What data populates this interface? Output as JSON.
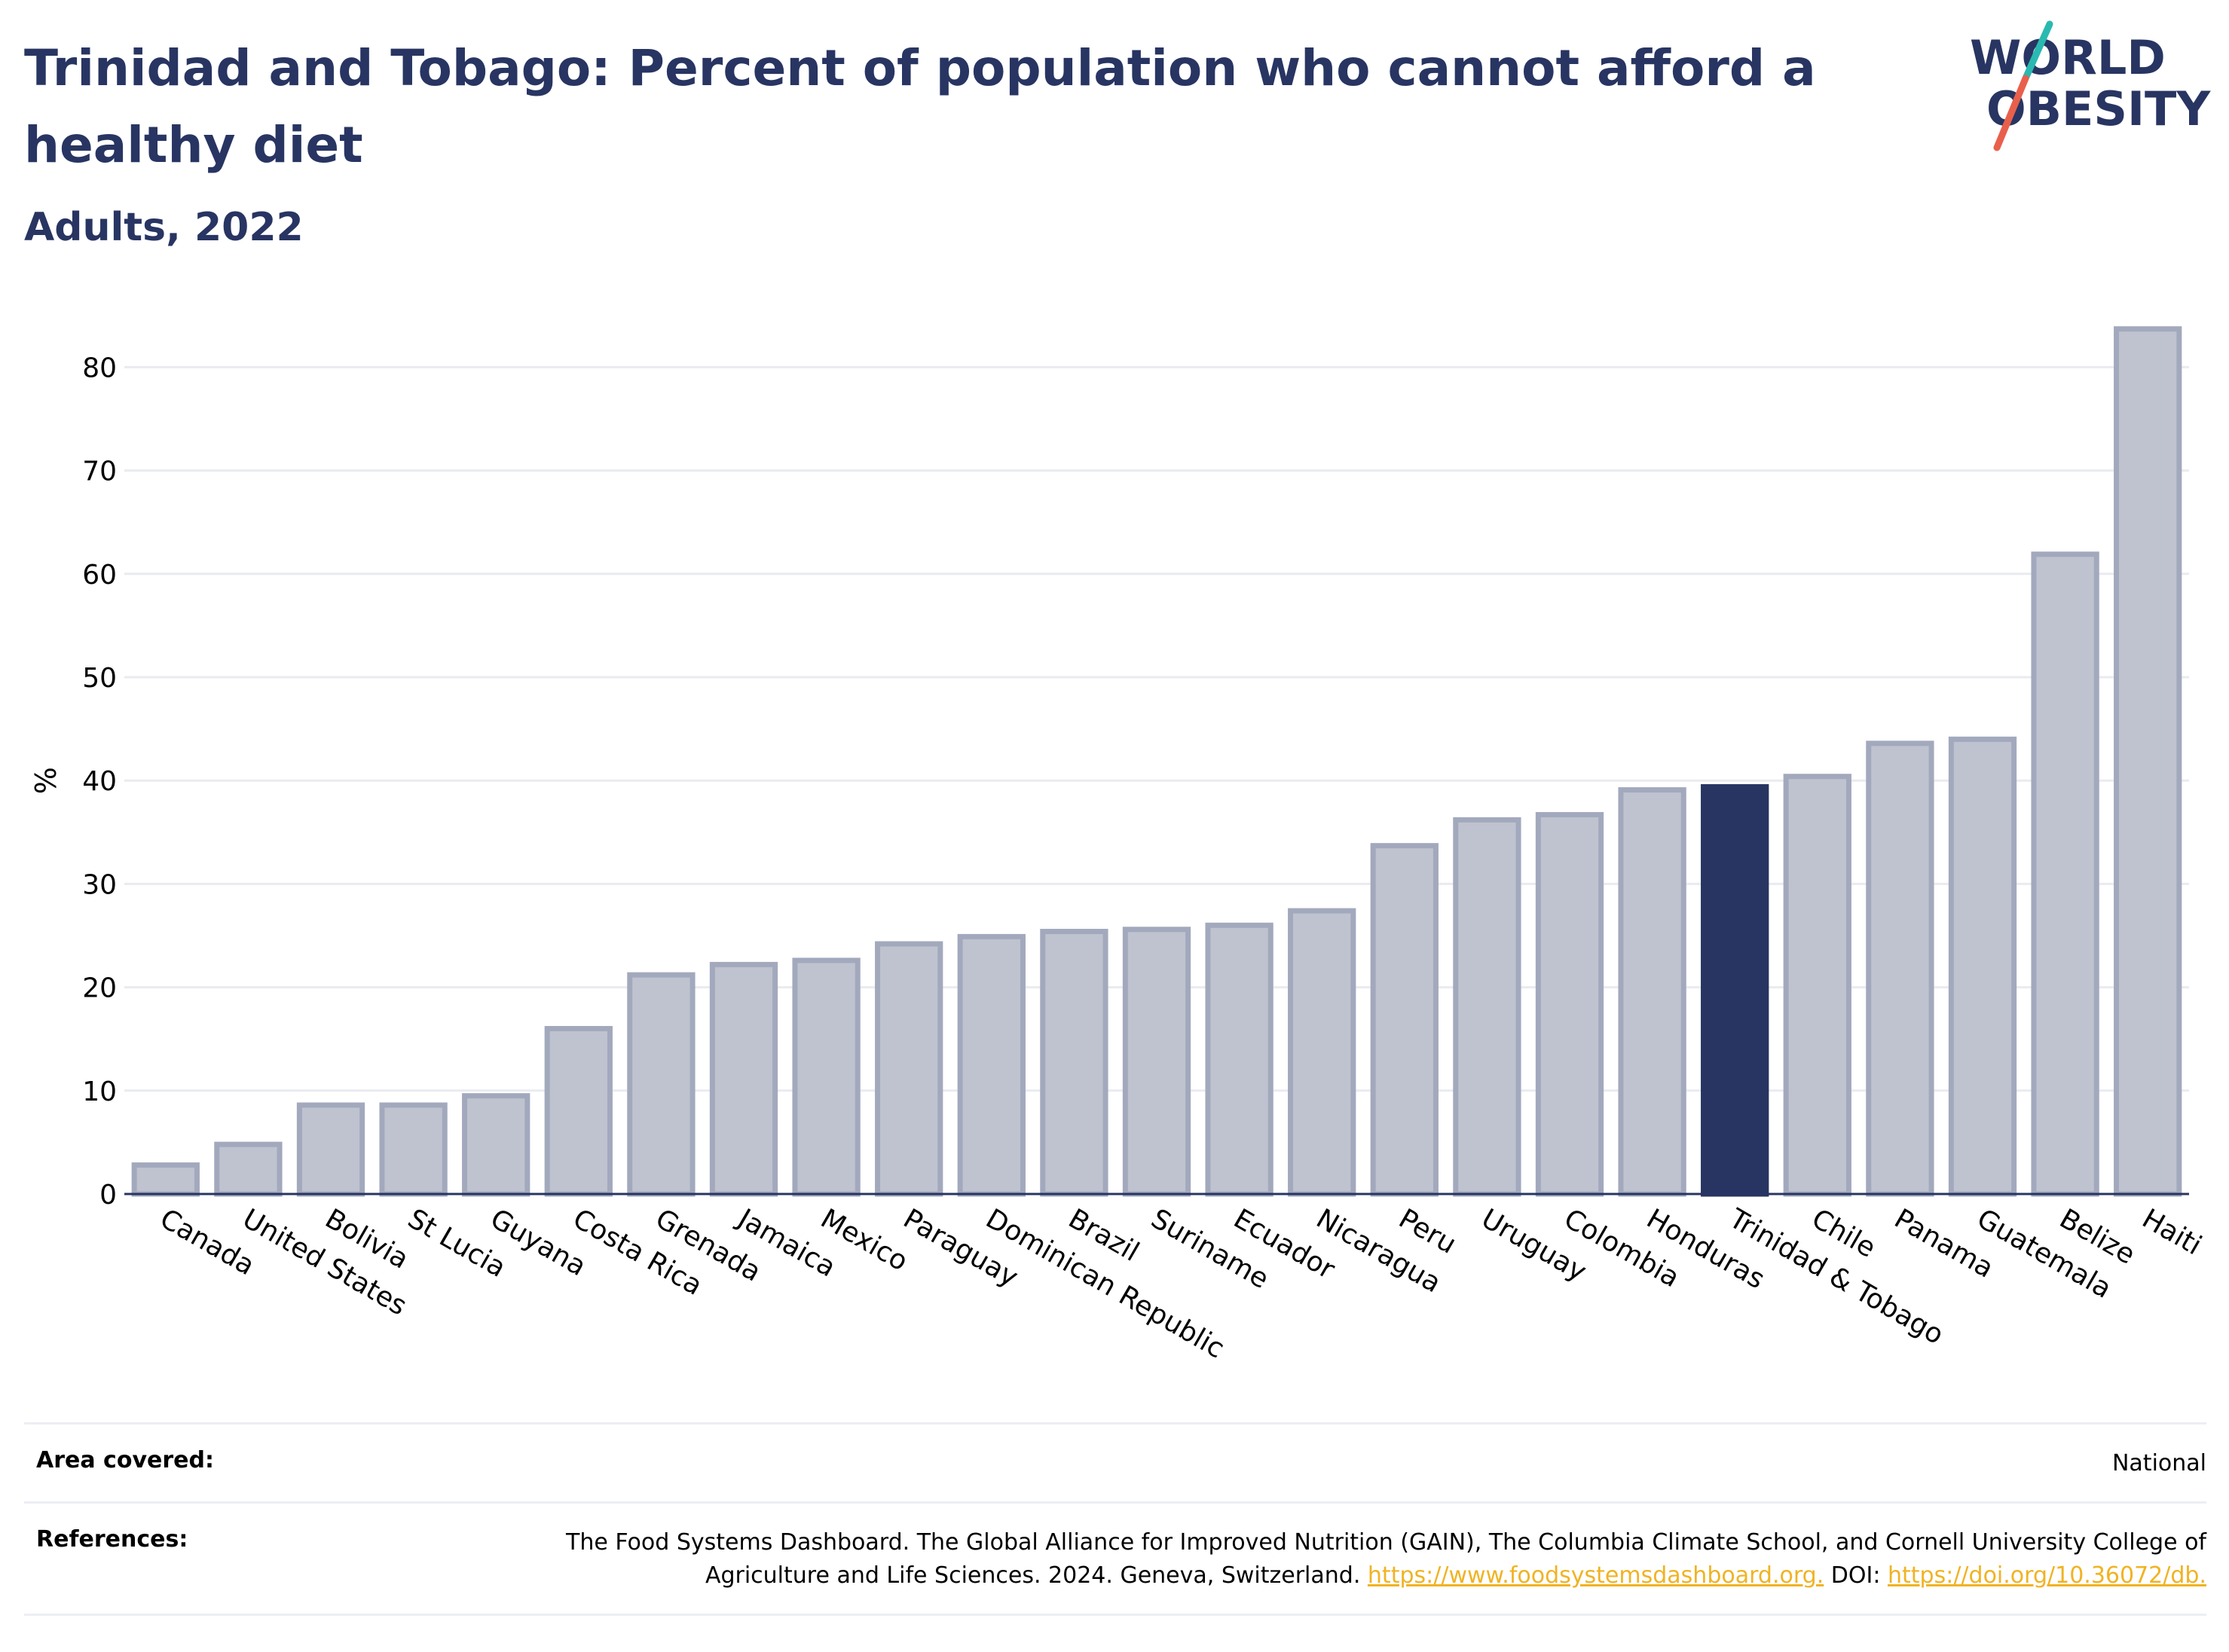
{
  "header": {
    "title": "Trinidad and Tobago: Percent of population who cannot afford a healthy diet",
    "subtitle": "Adults, 2022"
  },
  "logo": {
    "line1": "WORLD",
    "line2": "OBESITY",
    "colors": {
      "text": "#283562",
      "slash_top": "#2ab9b0",
      "slash_bottom": "#e8604c"
    }
  },
  "chart_data": {
    "type": "bar",
    "ylabel": "%",
    "xlabel": "",
    "ylim": [
      0,
      87
    ],
    "yticks": [
      0,
      10,
      20,
      30,
      40,
      50,
      60,
      70,
      80
    ],
    "grid": true,
    "categories": [
      "Canada",
      "United States",
      "Bolivia",
      "St Lucia",
      "Guyana",
      "Costa Rica",
      "Grenada",
      "Jamaica",
      "Mexico",
      "Paraguay",
      "Dominican Republic",
      "Brazil",
      "Suriname",
      "Ecuador",
      "Nicaragua",
      "Peru",
      "Uruguay",
      "Colombia",
      "Honduras",
      "Trinidad & Tobago",
      "Chile",
      "Panama",
      "Guatemala",
      "Belize",
      "Haiti"
    ],
    "values": [
      2.8,
      4.8,
      8.6,
      8.6,
      9.5,
      16.0,
      21.2,
      22.2,
      22.6,
      24.2,
      24.9,
      25.4,
      25.6,
      26.0,
      27.4,
      33.7,
      36.2,
      36.7,
      39.1,
      39.4,
      40.4,
      43.6,
      44.0,
      61.9,
      83.7
    ],
    "highlight": "Trinidad & Tobago",
    "colors": {
      "highlight": "#283562",
      "default_fill": "#bfc3cf",
      "default_stroke": "#a3a9bd",
      "axis": "#283562",
      "grid": "#e9ebf0"
    }
  },
  "meta": {
    "area_label": "Area covered:",
    "area_value": "National",
    "references_label": "References:",
    "references_text": "The Food Systems Dashboard. The Global Alliance for Improved Nutrition (GAIN), The Columbia Climate School, and Cornell University College of Agriculture and Life Sciences. 2024. Geneva, Switzerland.",
    "references_link1": "https://www.foodsystemsdashboard.org.",
    "references_doi_label": "DOI:",
    "references_link2": "https://doi.org/10.36072/db."
  }
}
